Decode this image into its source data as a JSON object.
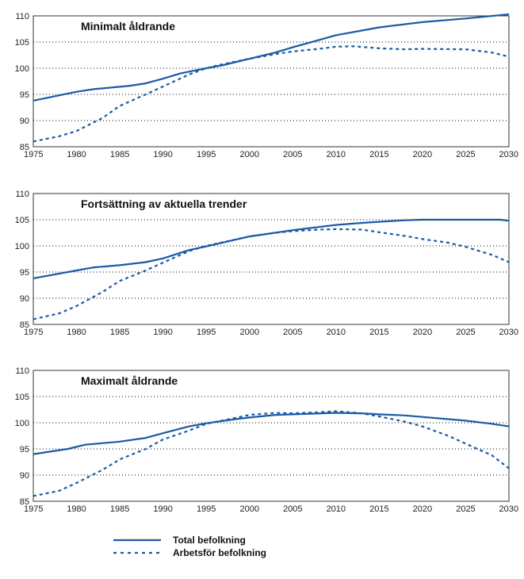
{
  "colors": {
    "line": "#1a5aa6",
    "grid": "#000000",
    "frame": "#333333"
  },
  "legend": {
    "total_label": "Total befolkning",
    "working_label": "Arbetsför befolkning"
  },
  "chart_data": [
    {
      "type": "line",
      "title": "Minimalt åldrande",
      "xlim": [
        1975,
        2030
      ],
      "ylim": [
        85,
        110
      ],
      "xticks": [
        1975,
        1980,
        1985,
        1990,
        1995,
        2000,
        2005,
        2010,
        2015,
        2020,
        2025,
        2030
      ],
      "yticks": [
        85,
        90,
        95,
        100,
        105,
        110
      ],
      "grid": "horizontal-dotted",
      "series": [
        {
          "name": "Total befolkning",
          "style": "solid",
          "x": [
            1975,
            1980,
            1982,
            1984,
            1986,
            1988,
            1990,
            1992,
            1995,
            1997,
            2000,
            2003,
            2005,
            2010,
            2015,
            2020,
            2025,
            2030
          ],
          "y": [
            93.8,
            95.5,
            96.0,
            96.3,
            96.6,
            97.1,
            98.0,
            99.0,
            100.0,
            100.6,
            101.8,
            103.0,
            104.0,
            106.3,
            107.8,
            108.8,
            109.5,
            110.3
          ]
        },
        {
          "name": "Arbetsför befolkning",
          "style": "dotted",
          "x": [
            1975,
            1978,
            1980,
            1983,
            1985,
            1988,
            1990,
            1993,
            1995,
            1997,
            2000,
            2003,
            2005,
            2008,
            2010,
            2012,
            2015,
            2018,
            2020,
            2025,
            2028,
            2030
          ],
          "y": [
            86.0,
            87.0,
            88.0,
            90.5,
            92.8,
            95.0,
            96.5,
            98.8,
            100.0,
            100.8,
            101.8,
            102.7,
            103.2,
            103.7,
            104.1,
            104.2,
            103.8,
            103.6,
            103.7,
            103.6,
            103.0,
            102.2
          ]
        }
      ]
    },
    {
      "type": "line",
      "title": "Fortsättning av aktuella trender",
      "xlim": [
        1975,
        2030
      ],
      "ylim": [
        85,
        110
      ],
      "xticks": [
        1975,
        1980,
        1985,
        1990,
        1995,
        2000,
        2005,
        2010,
        2015,
        2020,
        2025,
        2030
      ],
      "yticks": [
        85,
        90,
        95,
        100,
        105,
        110
      ],
      "grid": "horizontal-dotted",
      "series": [
        {
          "name": "Total befolkning",
          "style": "solid",
          "x": [
            1975,
            1980,
            1982,
            1985,
            1988,
            1990,
            1993,
            1995,
            2000,
            2005,
            2008,
            2010,
            2013,
            2015,
            2018,
            2020,
            2025,
            2029,
            2030
          ],
          "y": [
            93.8,
            95.3,
            95.9,
            96.3,
            96.9,
            97.6,
            99.2,
            99.9,
            101.8,
            103.0,
            103.6,
            104.0,
            104.4,
            104.6,
            104.9,
            105.0,
            105.0,
            105.0,
            104.8
          ]
        },
        {
          "name": "Arbetsför befolkning",
          "style": "dotted",
          "x": [
            1975,
            1978,
            1980,
            1983,
            1985,
            1988,
            1990,
            1993,
            1995,
            2000,
            2003,
            2005,
            2008,
            2010,
            2013,
            2015,
            2018,
            2020,
            2023,
            2025,
            2028,
            2030
          ],
          "y": [
            86.0,
            87.1,
            88.5,
            91.2,
            93.3,
            95.3,
            96.8,
            99.0,
            100.0,
            101.8,
            102.5,
            102.8,
            103.1,
            103.2,
            103.1,
            102.6,
            101.9,
            101.3,
            100.6,
            99.8,
            98.3,
            96.9
          ]
        }
      ]
    },
    {
      "type": "line",
      "title": "Maximalt åldrande",
      "xlim": [
        1975,
        2030
      ],
      "ylim": [
        85,
        110
      ],
      "xticks": [
        1975,
        1980,
        1985,
        1990,
        1995,
        2000,
        2005,
        2010,
        2015,
        2020,
        2025,
        2030
      ],
      "yticks": [
        85,
        90,
        95,
        100,
        105,
        110
      ],
      "grid": "horizontal-dotted",
      "series": [
        {
          "name": "Total befolkning",
          "style": "solid",
          "x": [
            1975,
            1979,
            1981,
            1985,
            1988,
            1990,
            1993,
            1995,
            1998,
            2000,
            2003,
            2005,
            2010,
            2013,
            2015,
            2018,
            2020,
            2025,
            2028,
            2030
          ],
          "y": [
            94.0,
            95.0,
            95.8,
            96.4,
            97.1,
            98.0,
            99.3,
            99.9,
            100.6,
            101.0,
            101.5,
            101.6,
            101.9,
            101.8,
            101.6,
            101.4,
            101.1,
            100.4,
            99.8,
            99.3
          ]
        },
        {
          "name": "Arbetsför befolkning",
          "style": "dotted",
          "x": [
            1975,
            1978,
            1980,
            1983,
            1985,
            1988,
            1990,
            1993,
            1995,
            1998,
            2000,
            2003,
            2005,
            2008,
            2010,
            2013,
            2015,
            2018,
            2020,
            2023,
            2025,
            2028,
            2030
          ],
          "y": [
            86.0,
            87.0,
            88.5,
            91.0,
            93.0,
            95.0,
            96.8,
            98.5,
            99.8,
            100.8,
            101.5,
            101.9,
            101.8,
            102.0,
            102.2,
            101.8,
            101.2,
            100.2,
            99.3,
            97.5,
            96.0,
            93.8,
            91.3
          ]
        }
      ]
    }
  ]
}
